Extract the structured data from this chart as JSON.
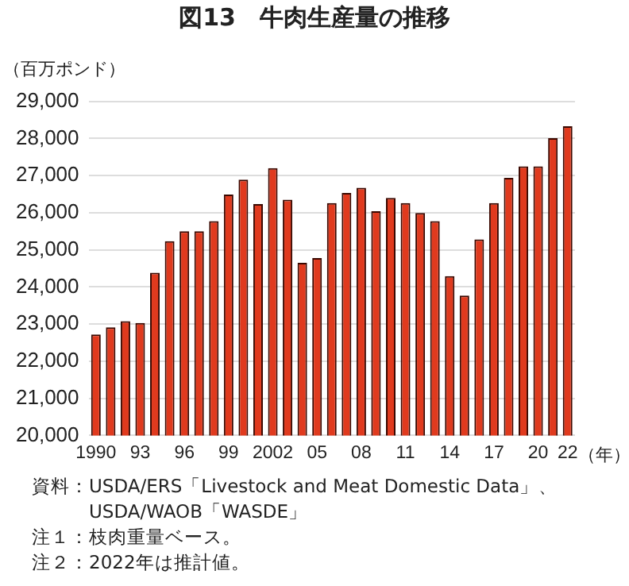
{
  "chart_data": {
    "type": "bar",
    "title": "図13　牛肉生産量の推移",
    "ylabel": "（百万ポンド）",
    "xlabel": "（年）",
    "categories": [
      "1990",
      null,
      null,
      "93",
      null,
      null,
      "96",
      null,
      null,
      "99",
      null,
      null,
      "2002",
      null,
      null,
      "05",
      null,
      null,
      "08",
      null,
      null,
      "11",
      null,
      null,
      "14",
      null,
      null,
      "17",
      null,
      null,
      "20",
      null,
      "22"
    ],
    "values": [
      22720,
      22910,
      23080,
      23030,
      24380,
      25230,
      25500,
      25500,
      25770,
      26490,
      26890,
      26230,
      27200,
      26350,
      24650,
      24780,
      26260,
      26530,
      26670,
      26040,
      26400,
      26260,
      25990,
      25770,
      24290,
      23770,
      25280,
      26260,
      26940,
      27250,
      27250,
      28010,
      28330
    ],
    "color": "#e03a1e",
    "ylim": [
      20000,
      29000
    ],
    "yticks": [
      {
        "value": 20000,
        "label": "20,000"
      },
      {
        "value": 21000,
        "label": "21,000"
      },
      {
        "value": 22000,
        "label": "22,000"
      },
      {
        "value": 23000,
        "label": "23,000"
      },
      {
        "value": 24000,
        "label": "24,000"
      },
      {
        "value": 25000,
        "label": "25,000"
      },
      {
        "value": 26000,
        "label": "26,000"
      },
      {
        "value": 27000,
        "label": "27,000"
      },
      {
        "value": 28000,
        "label": "28,000"
      },
      {
        "value": 29000,
        "label": "29,000"
      }
    ],
    "grid": "y",
    "annotations": [
      "資料：USDA/ERS「Livestock and Meat Domestic Data」、",
      "　　　USDA/WAOB「WASDE」",
      "注１：枝肉重量ベース。",
      "注２：2022年は推計値。"
    ]
  }
}
